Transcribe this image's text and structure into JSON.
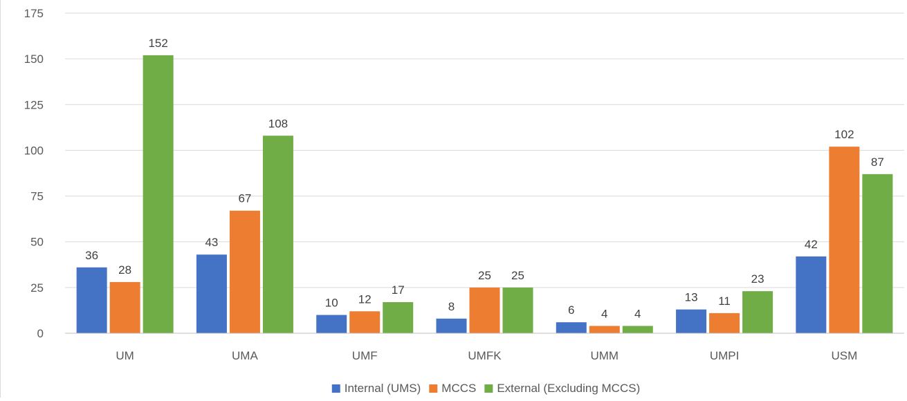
{
  "chart_data": {
    "type": "bar",
    "categories": [
      "UM",
      "UMA",
      "UMF",
      "UMFK",
      "UMM",
      "UMPI",
      "USM"
    ],
    "series": [
      {
        "name": "Internal (UMS)",
        "color": "#4472C4",
        "values": [
          36,
          43,
          10,
          8,
          6,
          13,
          42
        ]
      },
      {
        "name": "MCCS",
        "color": "#ED7D31",
        "values": [
          28,
          67,
          12,
          25,
          4,
          11,
          102
        ]
      },
      {
        "name": "External (Excluding MCCS)",
        "color": "#70AD47",
        "values": [
          152,
          108,
          17,
          25,
          4,
          23,
          87
        ]
      }
    ],
    "ylim": [
      0,
      175
    ],
    "yticks": [
      0,
      25,
      50,
      75,
      100,
      125,
      150,
      175
    ],
    "grid": true,
    "legend": "bottom-center"
  }
}
